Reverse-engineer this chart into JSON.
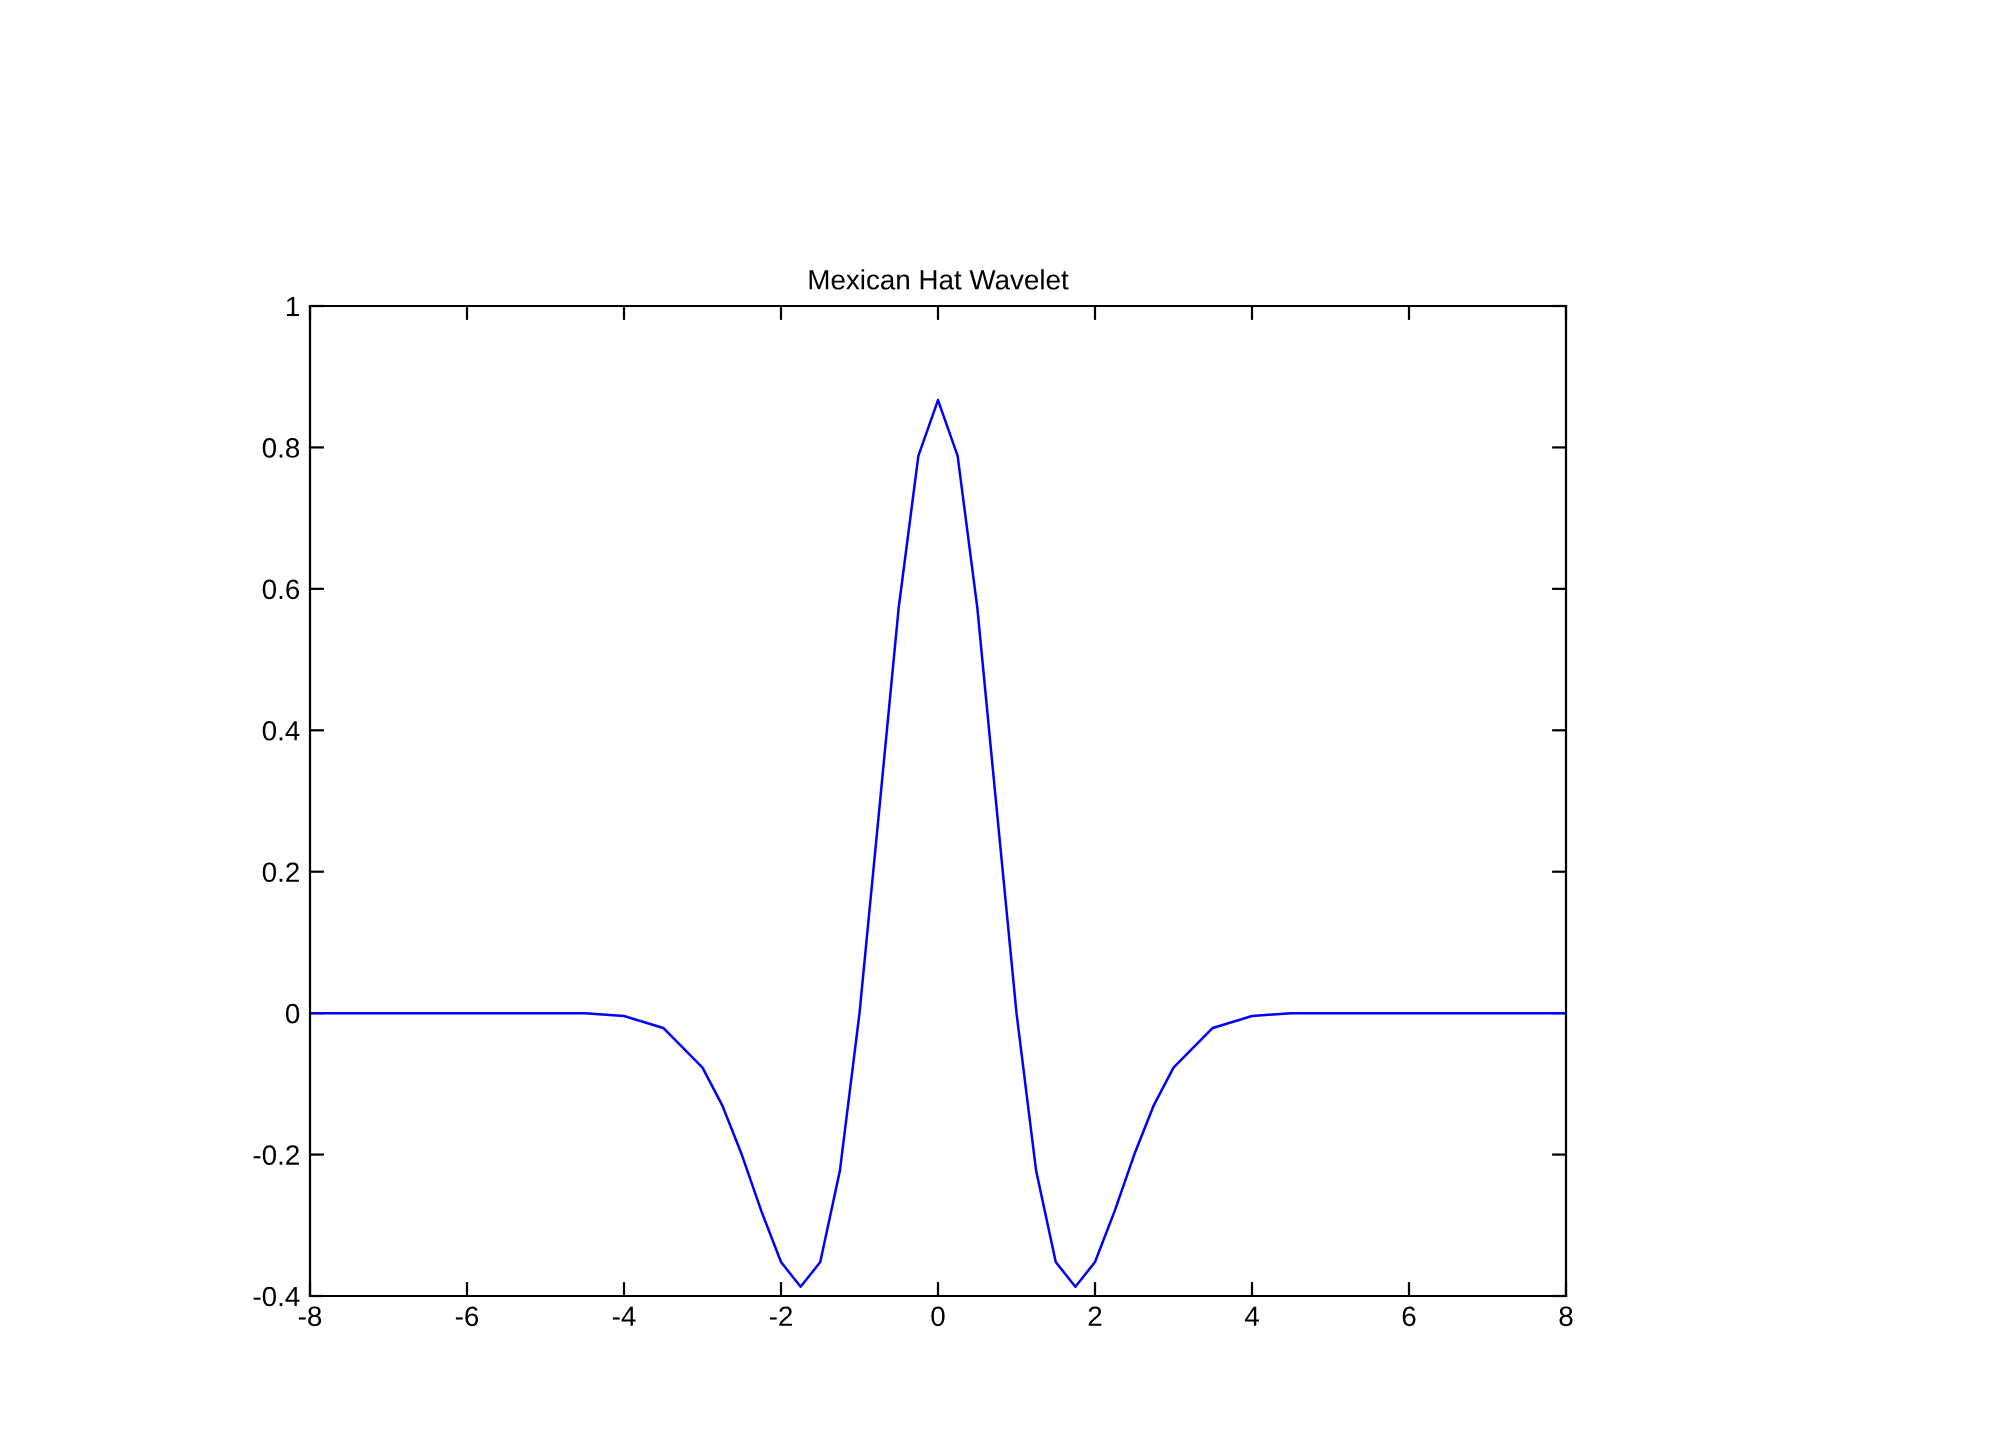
{
  "chart_data": {
    "type": "line",
    "title": "Mexican Hat Wavelet",
    "x": [
      -8,
      -6,
      -4.5,
      -4,
      -3.5,
      -3,
      -2.75,
      -2.5,
      -2.25,
      -2,
      -1.75,
      -1.5,
      -1.25,
      -1,
      -0.75,
      -0.5,
      -0.25,
      0,
      0.25,
      0.5,
      0.75,
      1,
      1.25,
      1.5,
      1.75,
      2,
      2.25,
      2.5,
      2.75,
      3,
      3.5,
      4,
      4.5,
      6,
      8
    ],
    "series": [
      {
        "color": "#0000ff",
        "values": [
          0,
          0,
          0,
          -0.004,
          -0.021,
          -0.077,
          -0.13,
          -0.2,
          -0.28,
          -0.352,
          -0.387,
          -0.352,
          -0.223,
          0,
          0.286,
          0.574,
          0.788,
          0.867,
          0.788,
          0.574,
          0.286,
          0,
          -0.223,
          -0.352,
          -0.387,
          -0.352,
          -0.28,
          -0.2,
          -0.13,
          -0.077,
          -0.021,
          -0.004,
          0,
          0,
          0
        ]
      }
    ],
    "xlim": [
      -8,
      8
    ],
    "xticks": [
      -8,
      -6,
      -4,
      -2,
      0,
      2,
      4,
      6,
      8
    ],
    "ylim": [
      -0.4,
      1
    ],
    "yticks": [
      -0.4,
      -0.2,
      0,
      0.2,
      0.4,
      0.6,
      0.8,
      1
    ],
    "grid": false,
    "legend": false,
    "marker": "none",
    "line_style": "solid"
  }
}
